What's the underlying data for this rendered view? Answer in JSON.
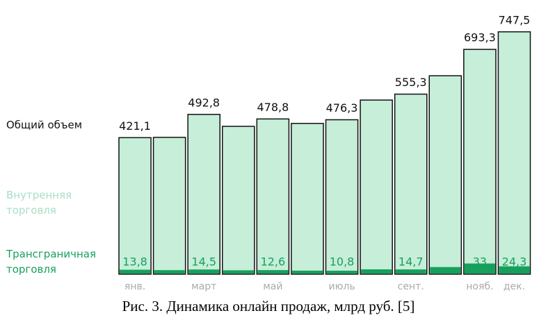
{
  "chart_data": {
    "type": "bar",
    "caption": "Рис. 3. Динамика онлайн продаж, млрд руб. [5]",
    "categories": [
      "янв.",
      null,
      "март",
      null,
      "май",
      null,
      "июль",
      null,
      "сент.",
      null,
      "нояб.",
      "дек."
    ],
    "series": [
      {
        "name": "Общий объем",
        "color": "#c6eed9",
        "values": [
          421.1,
          422,
          492.8,
          456,
          478.8,
          465,
          476.3,
          537,
          555.3,
          612,
          693.3,
          747.5
        ],
        "value_labels": [
          "421,1",
          null,
          "492,8",
          null,
          "478,8",
          null,
          "476,3",
          null,
          "555,3",
          null,
          "693,3",
          "747,5"
        ]
      },
      {
        "name": "Трансграничная торговля",
        "color": "#17a05c",
        "values": [
          13.8,
          12.5,
          14.5,
          12,
          12.6,
          11,
          10.8,
          15,
          14.7,
          22,
          33,
          24.3
        ],
        "value_labels": [
          "13,8",
          null,
          "14,5",
          null,
          "12,6",
          null,
          "10,8",
          null,
          "14,7",
          null,
          "33",
          "24,3"
        ]
      }
    ],
    "domestic_label": "Внутренняя торговля",
    "domestic_label_color": "#a9dfc5",
    "ylim": [
      0,
      760
    ]
  }
}
